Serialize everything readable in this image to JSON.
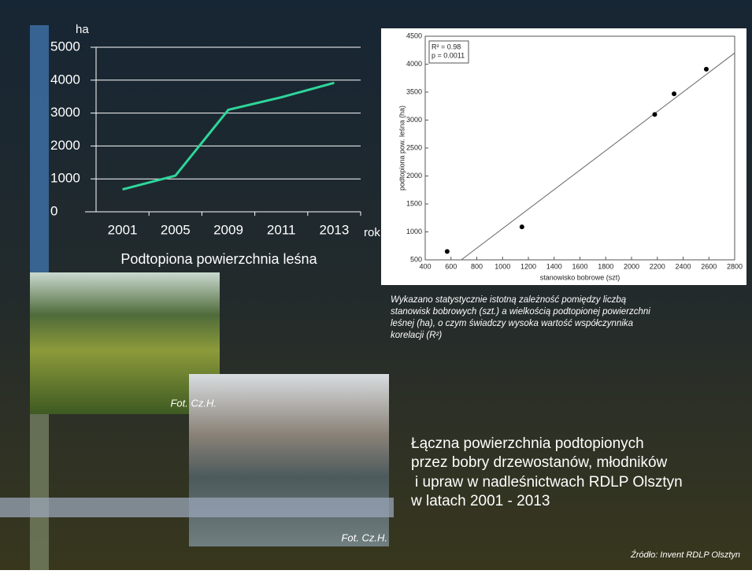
{
  "chart_data": [
    {
      "type": "line",
      "categories": [
        "2001",
        "2005",
        "2009",
        "2011",
        "2013"
      ],
      "values": [
        680,
        1100,
        3100,
        3480,
        3920
      ],
      "color": "#2ed69a",
      "ylim": [
        0,
        5000
      ],
      "yticks": [
        0,
        1000,
        2000,
        3000,
        4000,
        5000
      ],
      "grid": true,
      "ylabel": "ha",
      "xlabel": "rok",
      "title": "Podtopiona powierzchnia leśna"
    },
    {
      "type": "scatter",
      "x": [
        570,
        1150,
        2180,
        2330,
        2580
      ],
      "values": [
        650,
        1090,
        3100,
        3470,
        3910
      ],
      "color": "#000000",
      "fit": {
        "x": [
          680,
          2800
        ],
        "values": [
          500,
          4200
        ]
      },
      "xlim": [
        400,
        2800
      ],
      "xticks": [
        400,
        600,
        800,
        1000,
        1200,
        1400,
        1600,
        1800,
        2000,
        2200,
        2400,
        2600,
        2800
      ],
      "ylim": [
        500,
        4500
      ],
      "yticks": [
        500,
        1000,
        1500,
        2000,
        2500,
        3000,
        3500,
        4000,
        4500
      ],
      "xlabel": "stanowisko bobrowe (szt)",
      "ylabel": "podtopiona pow. leśna (ha)",
      "annotations": [
        "R² = 0.98",
        "p = 0.0011"
      ]
    }
  ],
  "caption": [
    "Wykazano statystycznie istotną zależność pomiędzy liczbą",
    "stanowisk bobrowych (szt.) a wielkością podtopionej powierzchni",
    "leśnej (ha), o czym świadczy wysoka wartość współczynnika",
    "korelacji (R²)"
  ],
  "photo_credits": [
    "Fot. Cz.H.",
    "Fot. Cz.H."
  ],
  "main_text": [
    "Łączna powierzchnia podtopionych",
    "przez bobry drzewostanów, młodników",
    "i upraw w nadleśnictwach RDLP Olsztyn",
    "w latach 2001 - 2013"
  ],
  "source": "Źródło: Invent RDLP Olsztyn"
}
